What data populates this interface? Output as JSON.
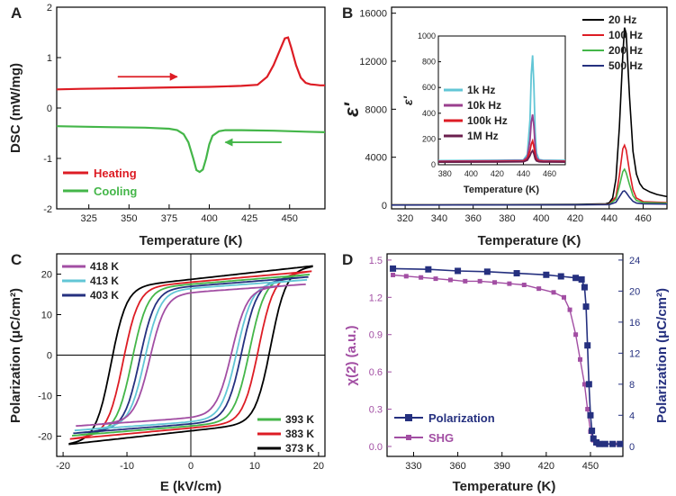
{
  "chart_data": [
    {
      "id": "A",
      "panel_label": "A",
      "type": "line",
      "xlabel": "Temperature (K)",
      "ylabel": "DSC (mW/mg)",
      "xlim": [
        305,
        472
      ],
      "ylim": [
        -2,
        2
      ],
      "xticks": [
        "325",
        "350",
        "375",
        "400",
        "425",
        "450"
      ],
      "yticks": [
        "-2",
        "-1",
        "0",
        "1",
        "2"
      ],
      "arrows": [
        {
          "name": "heating-arrow",
          "color": "#dd1c24",
          "from": [
            343,
            0.62
          ],
          "to": [
            380,
            0.62
          ]
        },
        {
          "name": "cooling-arrow",
          "color": "#44b649",
          "from": [
            445,
            -0.68
          ],
          "to": [
            410,
            -0.68
          ]
        }
      ],
      "series": [
        {
          "name": "Heating",
          "color": "#dd1c24",
          "x": [
            305,
            320,
            340,
            360,
            380,
            400,
            420,
            430,
            436,
            440,
            444,
            447,
            449,
            451,
            454,
            457,
            460,
            463,
            466,
            469,
            472
          ],
          "y": [
            0.37,
            0.38,
            0.39,
            0.4,
            0.41,
            0.42,
            0.44,
            0.46,
            0.62,
            0.85,
            1.15,
            1.38,
            1.4,
            1.2,
            0.85,
            0.6,
            0.5,
            0.47,
            0.46,
            0.45,
            0.45
          ]
        },
        {
          "name": "Cooling",
          "color": "#44b649",
          "x": [
            305,
            320,
            340,
            360,
            375,
            380,
            384,
            387,
            390,
            392,
            394,
            396,
            398,
            400,
            402,
            406,
            410,
            420,
            440,
            460,
            472
          ],
          "y": [
            -0.36,
            -0.37,
            -0.38,
            -0.39,
            -0.41,
            -0.44,
            -0.52,
            -0.68,
            -1.0,
            -1.23,
            -1.27,
            -1.22,
            -1.0,
            -0.72,
            -0.55,
            -0.46,
            -0.44,
            -0.44,
            -0.45,
            -0.47,
            -0.48
          ]
        }
      ]
    },
    {
      "id": "B",
      "panel_label": "B",
      "type": "line",
      "xlabel": "Temperature (K)",
      "ylabel": "ε'",
      "xlim": [
        312,
        474
      ],
      "ylim": [
        -300,
        16500
      ],
      "xticks": [
        "320",
        "340",
        "360",
        "380",
        "400",
        "420",
        "440",
        "460"
      ],
      "yticks": [
        "0",
        "4000",
        "8000",
        "12000",
        "16000"
      ],
      "series": [
        {
          "name": "20 Hz",
          "color": "#000000",
          "x": [
            312,
            340,
            380,
            420,
            438,
            440,
            442,
            444,
            446,
            448,
            449,
            450,
            452,
            454,
            456,
            458,
            460,
            464,
            468,
            472,
            474
          ],
          "y": [
            30,
            40,
            50,
            70,
            120,
            200,
            600,
            2200,
            6500,
            12500,
            14800,
            14300,
            9000,
            4500,
            2600,
            1800,
            1400,
            1100,
            900,
            780,
            720
          ]
        },
        {
          "name": "100 Hz",
          "color": "#dd1c24",
          "x": [
            312,
            420,
            440,
            444,
            446,
            448,
            449,
            450,
            452,
            454,
            456,
            460,
            474
          ],
          "y": [
            25,
            40,
            90,
            700,
            2500,
            4700,
            5000,
            4600,
            2800,
            1300,
            600,
            300,
            220
          ]
        },
        {
          "name": "200 Hz",
          "color": "#44b649",
          "x": [
            312,
            420,
            440,
            444,
            446,
            448,
            449,
            450,
            452,
            454,
            456,
            460,
            474
          ],
          "y": [
            20,
            35,
            70,
            500,
            1600,
            2800,
            3000,
            2700,
            1700,
            800,
            400,
            220,
            170
          ]
        },
        {
          "name": "500 Hz",
          "color": "#25307f",
          "x": [
            312,
            420,
            440,
            444,
            446,
            448,
            449,
            450,
            452,
            454,
            456,
            460,
            474
          ],
          "y": [
            15,
            30,
            50,
            250,
            700,
            1150,
            1200,
            1050,
            650,
            330,
            180,
            120,
            100
          ]
        }
      ],
      "inset": {
        "ylabel": "ε'",
        "xlabel": "Temperature (K)",
        "xlim": [
          375,
          472
        ],
        "ylim": [
          0,
          1000
        ],
        "xticks": [
          "380",
          "400",
          "420",
          "440",
          "460"
        ],
        "yticks": [
          "0",
          "200",
          "400",
          "600",
          "800",
          "1000"
        ],
        "series": [
          {
            "name": "1k Hz",
            "color": "#62c6d6",
            "x": [
              375,
              420,
              440,
              443,
              445,
              446,
              447,
              448,
              449,
              450,
              452,
              455,
              460,
              472
            ],
            "y": [
              32,
              35,
              38,
              80,
              350,
              700,
              850,
              620,
              250,
              90,
              40,
              36,
              35,
              34
            ]
          },
          {
            "name": "10k Hz",
            "color": "#9a3f8e",
            "x": [
              375,
              420,
              440,
              443,
              445,
              446,
              447,
              448,
              449,
              450,
              452,
              455,
              460,
              472
            ],
            "y": [
              28,
              30,
              33,
              60,
              190,
              330,
              390,
              300,
              130,
              55,
              35,
              31,
              30,
              29
            ]
          },
          {
            "name": "100k Hz",
            "color": "#dd1c24",
            "x": [
              375,
              420,
              440,
              443,
              445,
              446,
              447,
              448,
              449,
              450,
              452,
              455,
              460,
              472
            ],
            "y": [
              24,
              25,
              28,
              45,
              110,
              160,
              185,
              140,
              70,
              38,
              28,
              26,
              25,
              25
            ]
          },
          {
            "name": "1M Hz",
            "color": "#6b1f4e",
            "x": [
              375,
              420,
              440,
              443,
              445,
              446,
              447,
              448,
              449,
              450,
              452,
              455,
              460,
              472
            ],
            "y": [
              20,
              21,
              23,
              35,
              70,
              95,
              110,
              85,
              45,
              30,
              23,
              21,
              21,
              20
            ]
          }
        ]
      }
    },
    {
      "id": "C",
      "panel_label": "C",
      "type": "line",
      "xlabel": "E (kV/cm)",
      "ylabel": "Polarization (μC/cm²)",
      "xlim": [
        -21,
        21
      ],
      "ylim": [
        -25,
        25
      ],
      "xticks": [
        "-20",
        "-10",
        "0",
        "10",
        "20"
      ],
      "yticks": [
        "-20",
        "-10",
        "0",
        "10",
        "20"
      ],
      "series": [
        {
          "name": "418 K",
          "color": "#a24ea3",
          "Ec": 6.4,
          "Ps": 15.5,
          "Emax": 18.0,
          "Pmax": 17.5
        },
        {
          "name": "413 K",
          "color": "#62c6d6",
          "Ec": 7.2,
          "Ps": 16.5,
          "Emax": 18.2,
          "Pmax": 18.6
        },
        {
          "name": "403 K",
          "color": "#25307f",
          "Ec": 8.0,
          "Ps": 17.0,
          "Emax": 18.4,
          "Pmax": 19.3
        },
        {
          "name": "393 K",
          "color": "#44b649",
          "Ec": 9.2,
          "Ps": 17.5,
          "Emax": 18.6,
          "Pmax": 19.9
        },
        {
          "name": "383 K",
          "color": "#dd1c24",
          "Ec": 10.6,
          "Ps": 18.0,
          "Emax": 18.8,
          "Pmax": 20.7
        },
        {
          "name": "373 K",
          "color": "#000000",
          "Ec": 12.5,
          "Ps": 18.7,
          "Emax": 19.0,
          "Pmax": 22.0
        }
      ]
    },
    {
      "id": "D",
      "panel_label": "D",
      "type": "line",
      "xlabel": "Temperature (K)",
      "ylabel_left": "χ(2) (a.u.)",
      "ylabel_right": "Polarization (μC/cm²)",
      "xlim": [
        312,
        472
      ],
      "ylim_left": [
        -0.08,
        1.55
      ],
      "ylim_right": [
        -1.3,
        24.8
      ],
      "xticks": [
        "330",
        "360",
        "390",
        "420",
        "450"
      ],
      "yticks_left": [
        "0.0",
        "0.3",
        "0.6",
        "0.9",
        "1.2",
        "1.5"
      ],
      "yticks_right": [
        "0",
        "4",
        "8",
        "12",
        "16",
        "20",
        "24"
      ],
      "series": [
        {
          "name": "Polarization",
          "color": "#25307f",
          "axis": "right",
          "x": [
            316,
            340,
            360,
            380,
            400,
            420,
            430,
            440,
            444,
            446,
            447,
            448,
            449,
            450,
            451,
            452,
            454,
            456,
            460,
            465,
            470
          ],
          "y": [
            22.9,
            22.8,
            22.6,
            22.5,
            22.3,
            22.1,
            21.9,
            21.7,
            21.5,
            20.5,
            18.0,
            13.0,
            8.0,
            4.0,
            2.0,
            1.0,
            0.5,
            0.3,
            0.3,
            0.3,
            0.3
          ]
        },
        {
          "name": "SHG",
          "color": "#a24ea3",
          "axis": "left",
          "x": [
            316,
            325,
            335,
            345,
            355,
            365,
            375,
            385,
            395,
            405,
            415,
            425,
            432,
            436,
            440,
            443,
            446,
            448,
            450,
            452,
            455,
            460,
            466,
            470
          ],
          "y": [
            1.38,
            1.37,
            1.36,
            1.35,
            1.34,
            1.33,
            1.33,
            1.32,
            1.31,
            1.3,
            1.27,
            1.24,
            1.2,
            1.1,
            0.9,
            0.7,
            0.5,
            0.3,
            0.12,
            0.05,
            0.02,
            0.02,
            0.02,
            0.02
          ]
        }
      ]
    }
  ]
}
